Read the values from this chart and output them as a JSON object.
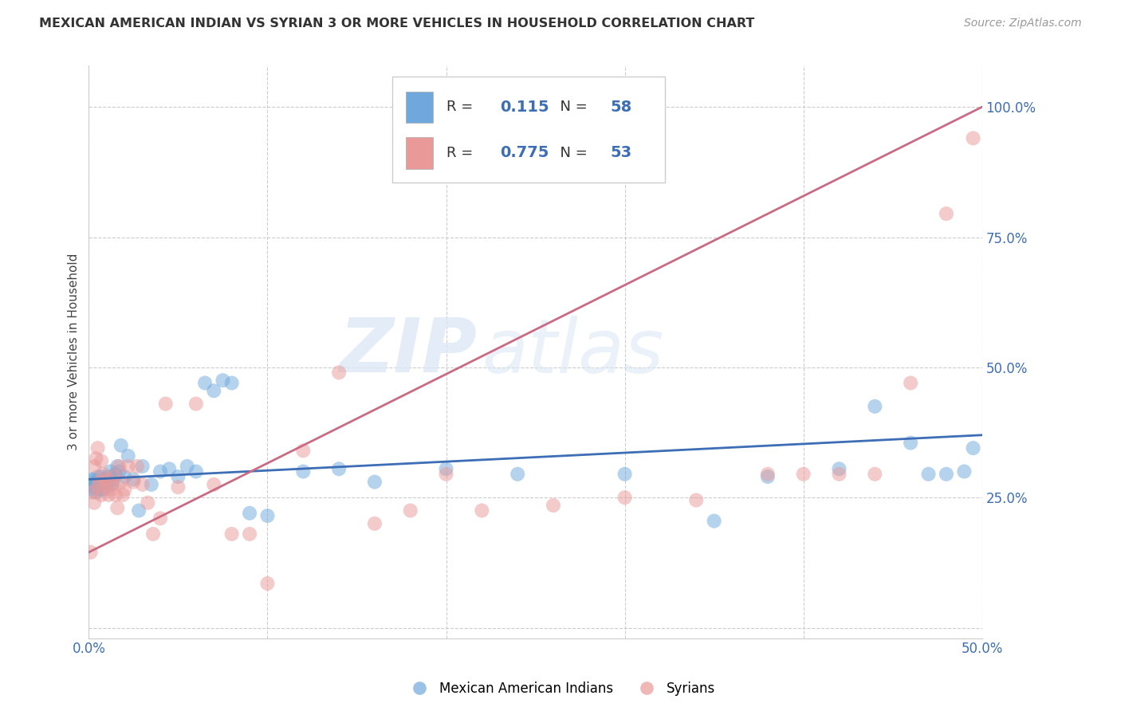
{
  "title": "MEXICAN AMERICAN INDIAN VS SYRIAN 3 OR MORE VEHICLES IN HOUSEHOLD CORRELATION CHART",
  "source": "Source: ZipAtlas.com",
  "ylabel": "3 or more Vehicles in Household",
  "xlim": [
    0.0,
    0.5
  ],
  "ylim": [
    -0.02,
    1.08
  ],
  "xticks": [
    0.0,
    0.1,
    0.2,
    0.3,
    0.4,
    0.5
  ],
  "yticks_right": [
    0.0,
    0.25,
    0.5,
    0.75,
    1.0
  ],
  "yticklabels_right": [
    "",
    "25.0%",
    "50.0%",
    "75.0%",
    "100.0%"
  ],
  "blue_R": "0.115",
  "blue_N": "58",
  "pink_R": "0.775",
  "pink_N": "53",
  "blue_color": "#6fa8dc",
  "pink_color": "#ea9999",
  "blue_line_color": "#3d6eb5",
  "pink_line_color": "#c96b85",
  "watermark_zip": "ZIP",
  "watermark_atlas": "atlas",
  "legend_label_blue": "Mexican American Indians",
  "legend_label_pink": "Syrians",
  "blue_x": [
    0.001,
    0.002,
    0.002,
    0.003,
    0.003,
    0.004,
    0.004,
    0.005,
    0.005,
    0.006,
    0.006,
    0.007,
    0.007,
    0.008,
    0.008,
    0.009,
    0.01,
    0.01,
    0.011,
    0.012,
    0.013,
    0.014,
    0.015,
    0.016,
    0.017,
    0.018,
    0.02,
    0.022,
    0.025,
    0.028,
    0.03,
    0.035,
    0.04,
    0.045,
    0.05,
    0.055,
    0.06,
    0.065,
    0.07,
    0.075,
    0.08,
    0.09,
    0.1,
    0.12,
    0.14,
    0.16,
    0.2,
    0.24,
    0.3,
    0.35,
    0.38,
    0.42,
    0.44,
    0.46,
    0.47,
    0.48,
    0.49,
    0.495
  ],
  "blue_y": [
    0.285,
    0.275,
    0.265,
    0.285,
    0.27,
    0.28,
    0.26,
    0.29,
    0.27,
    0.28,
    0.265,
    0.275,
    0.29,
    0.28,
    0.265,
    0.285,
    0.27,
    0.28,
    0.29,
    0.3,
    0.275,
    0.285,
    0.295,
    0.31,
    0.3,
    0.35,
    0.29,
    0.33,
    0.285,
    0.225,
    0.31,
    0.275,
    0.3,
    0.305,
    0.29,
    0.31,
    0.3,
    0.47,
    0.455,
    0.475,
    0.47,
    0.22,
    0.215,
    0.3,
    0.305,
    0.28,
    0.305,
    0.295,
    0.295,
    0.205,
    0.29,
    0.305,
    0.425,
    0.355,
    0.295,
    0.295,
    0.3,
    0.345
  ],
  "pink_x": [
    0.001,
    0.002,
    0.003,
    0.003,
    0.004,
    0.005,
    0.005,
    0.006,
    0.007,
    0.007,
    0.008,
    0.009,
    0.01,
    0.011,
    0.012,
    0.013,
    0.014,
    0.015,
    0.016,
    0.017,
    0.018,
    0.019,
    0.02,
    0.022,
    0.025,
    0.027,
    0.03,
    0.033,
    0.036,
    0.04,
    0.043,
    0.05,
    0.06,
    0.07,
    0.08,
    0.09,
    0.1,
    0.12,
    0.14,
    0.16,
    0.18,
    0.2,
    0.22,
    0.26,
    0.3,
    0.34,
    0.38,
    0.4,
    0.42,
    0.44,
    0.46,
    0.48,
    0.495
  ],
  "pink_y": [
    0.145,
    0.26,
    0.31,
    0.24,
    0.325,
    0.27,
    0.345,
    0.28,
    0.32,
    0.255,
    0.295,
    0.275,
    0.285,
    0.255,
    0.265,
    0.275,
    0.29,
    0.255,
    0.23,
    0.31,
    0.28,
    0.255,
    0.265,
    0.31,
    0.28,
    0.31,
    0.275,
    0.24,
    0.18,
    0.21,
    0.43,
    0.27,
    0.43,
    0.275,
    0.18,
    0.18,
    0.085,
    0.34,
    0.49,
    0.2,
    0.225,
    0.295,
    0.225,
    0.235,
    0.25,
    0.245,
    0.295,
    0.295,
    0.295,
    0.295,
    0.47,
    0.795,
    0.94
  ],
  "blue_line_x": [
    0.0,
    0.5
  ],
  "blue_line_y": [
    0.285,
    0.37
  ],
  "pink_line_x": [
    0.0,
    0.5
  ],
  "pink_line_y": [
    0.145,
    1.0
  ]
}
